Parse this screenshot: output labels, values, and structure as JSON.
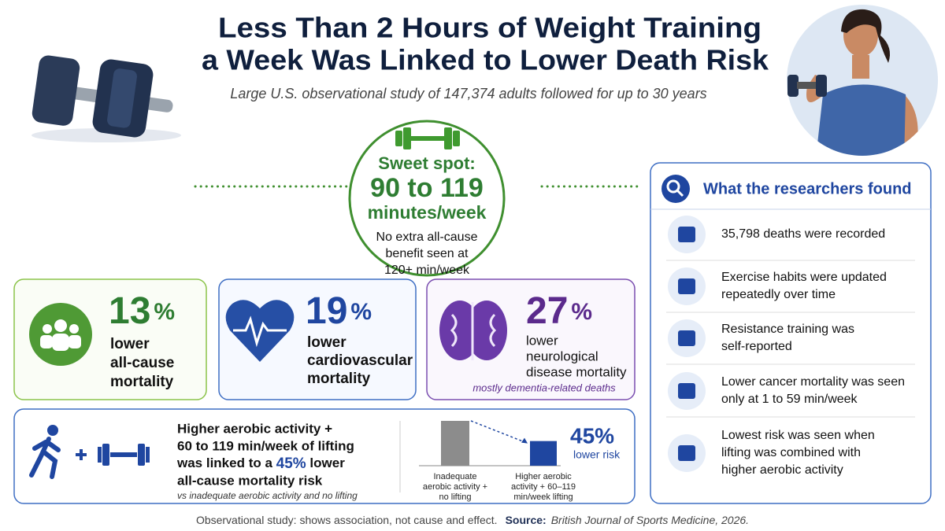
{
  "header": {
    "title": [
      "Less Than 2 Hours of Weight Training",
      "a Week Was Linked to Lower Death Risk"
    ],
    "subtitle": "Large U.S. observational study of 147,374 adults followed for up to 30 years"
  },
  "sweet_spot": {
    "label": "Sweet spot:",
    "range": "90 to 119",
    "unit": "minutes/week",
    "note": [
      "No extra all-cause",
      "benefit seen at",
      "120+ min/week"
    ]
  },
  "stats": [
    {
      "value": "13",
      "unit": "%",
      "label": [
        "lower",
        "all-cause",
        "mortality"
      ]
    },
    {
      "value": "19",
      "unit": "%",
      "label": [
        "lower",
        "cardiovascular",
        "mortality"
      ]
    },
    {
      "value": "27",
      "unit": "%",
      "label": [
        "lower",
        "neurological",
        "disease mortality"
      ],
      "note": "mostly dementia-related deaths"
    }
  ],
  "combo": {
    "lines": [
      "Higher aerobic activity +",
      "60 to 119 min/week of lifting",
      "was linked to a ",
      "45%",
      " lower",
      "all-cause mortality risk"
    ],
    "note": "vs inadequate aerobic activity and no lifting"
  },
  "chart_data": {
    "type": "bar",
    "categories": [
      [
        "Inadequate",
        "aerobic activity +",
        "no lifting"
      ],
      [
        "Higher aerobic",
        "activity + 60–119",
        "min/week lifting"
      ]
    ],
    "values": [
      1,
      0.55
    ],
    "colors": [
      "#8c8c8c",
      "#1f46a0"
    ],
    "annotation": {
      "value": "45%",
      "text": "lower risk"
    }
  },
  "findings": {
    "title": "What the researchers found",
    "items": [
      [
        "35,798 deaths were recorded"
      ],
      [
        "Exercise habits were updated",
        "repeatedly over time"
      ],
      [
        "Resistance training was",
        "self-reported"
      ],
      [
        "Lower cancer mortality was seen",
        "only at 1 to 59 min/week"
      ],
      [
        "Lowest risk was seen when",
        "lifting was combined with",
        "higher aerobic activity"
      ]
    ]
  },
  "footer": {
    "note": "Observational study: shows association, not cause and effect.",
    "source_label": "Source:",
    "source": "British Journal of Sports Medicine, 2026."
  }
}
